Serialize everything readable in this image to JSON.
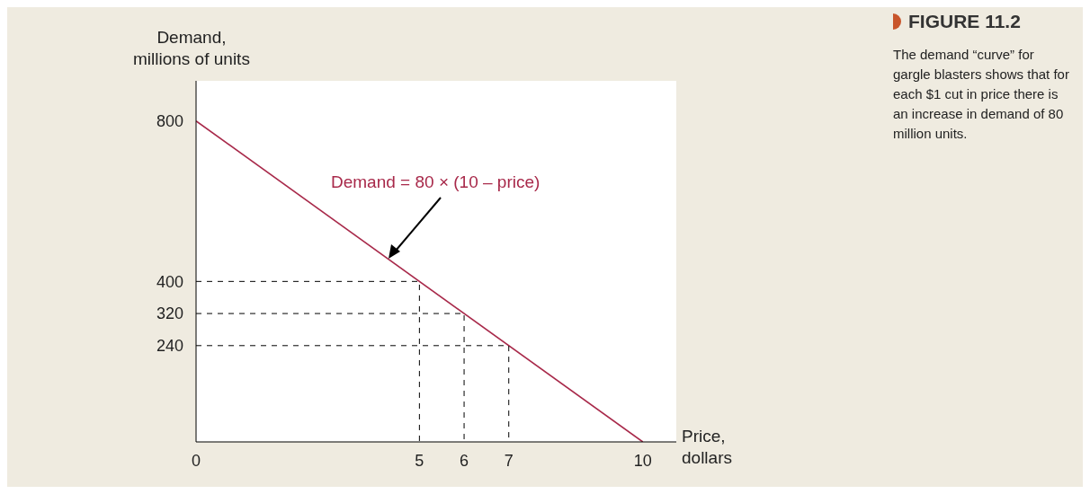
{
  "chart_data": {
    "type": "line",
    "title": "FIGURE 11.2",
    "subtitle": "The demand “curve” for gargle blasters shows that for each $1 cut in price there is an increase in demand of 80 million units.",
    "xlabel": "Price,\ndollars",
    "ylabel": "Demand,\nmillions of units",
    "xlim": [
      0,
      10.75
    ],
    "ylim": [
      0,
      900
    ],
    "xticks": [
      0,
      5,
      6,
      7,
      10
    ],
    "yticks": [
      240,
      320,
      400,
      800
    ],
    "marker": "none",
    "series": [
      {
        "color": "#a8294a",
        "x": [
          0,
          10
        ],
        "values": [
          800,
          0
        ],
        "line_style": "solid"
      },
      {
        "color": "#000000",
        "x": [
          0,
          5,
          5
        ],
        "values": [
          400,
          400,
          0
        ],
        "line_style": "dashed"
      },
      {
        "color": "#000000",
        "x": [
          0,
          6,
          6
        ],
        "values": [
          320,
          320,
          0
        ],
        "line_style": "dashed"
      },
      {
        "color": "#000000",
        "x": [
          0,
          7,
          7
        ],
        "values": [
          240,
          240,
          0
        ],
        "line_style": "dashed"
      }
    ],
    "annotations": [
      "Demand = 80 × (10 – price)"
    ]
  }
}
